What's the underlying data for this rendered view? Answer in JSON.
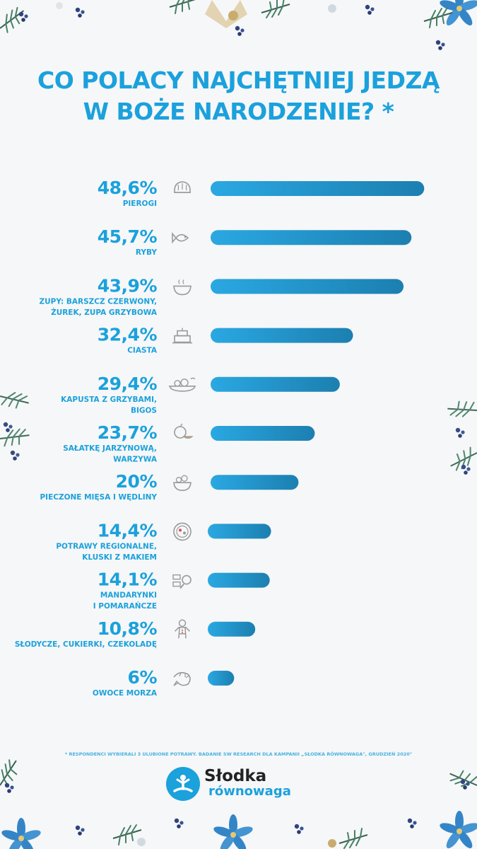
{
  "title": {
    "line1": "CO POLACY NAJCHĘTNIEJ JEDZĄ",
    "line2": "W BOŻE NARODZENIE? *"
  },
  "footnote": "* RESPONDENCI WYBIERALI 3 ULUBIONE POTRAWY. BADANIE SW RESEARCH DLA KAMPANII „SŁODKA RÓWNOWAGA\", GRUDZIEŃ 2020\"",
  "logo": {
    "word1": "Słodka",
    "word2": "równowaga"
  },
  "colors": {
    "accent": "#1ba1dc",
    "bar_start": "#2aa8e2",
    "bar_end": "#1c7fb0",
    "icon": "#9a9a9a"
  },
  "chart_data": {
    "type": "bar",
    "orientation": "horizontal",
    "categories": [
      [
        "PIEROGI"
      ],
      [
        "RYBY"
      ],
      [
        "ZUPY: BARSZCZ CZERWONY,",
        "ŻUREK, ZUPA GRZYBOWA"
      ],
      [
        "CIASTA"
      ],
      [
        "KAPUSTA Z GRZYBAMI,",
        "BIGOS"
      ],
      [
        "SAŁATKĘ JARZYNOWĄ,",
        "WARZYWA"
      ],
      [
        "PIECZONE MIĘSA I WĘDLINY"
      ],
      [
        "POTRAWY REGIONALNE,",
        "KLUSKI Z MAKIEM"
      ],
      [
        "MANDARYNKI",
        "I POMARAŃCZE"
      ],
      [
        "SŁODYCZE, CUKIERKI, CZEKOLADĘ"
      ],
      [
        "OWOCE MORZA"
      ]
    ],
    "value_labels": [
      "48,6%",
      "45,7%",
      "43,9%",
      "32,4%",
      "29,4%",
      "23,7%",
      "20%",
      "14,4%",
      "14,1%",
      "10,8%",
      "6%"
    ],
    "values": [
      48.6,
      45.7,
      43.9,
      32.4,
      29.4,
      23.7,
      20,
      14.4,
      14.1,
      10.8,
      6
    ],
    "icons": [
      "dumpling-icon",
      "fish-icon",
      "soup-bowl-icon",
      "cake-icon",
      "cabbage-dish-icon",
      "citrus-icon",
      "salad-bowl-icon",
      "regional-dish-plate-icon",
      "meat-icon",
      "gingerbread-icon",
      "shrimp-icon"
    ],
    "unit": "%",
    "xlim": [
      0,
      50
    ],
    "grid": false,
    "legend": "none"
  }
}
